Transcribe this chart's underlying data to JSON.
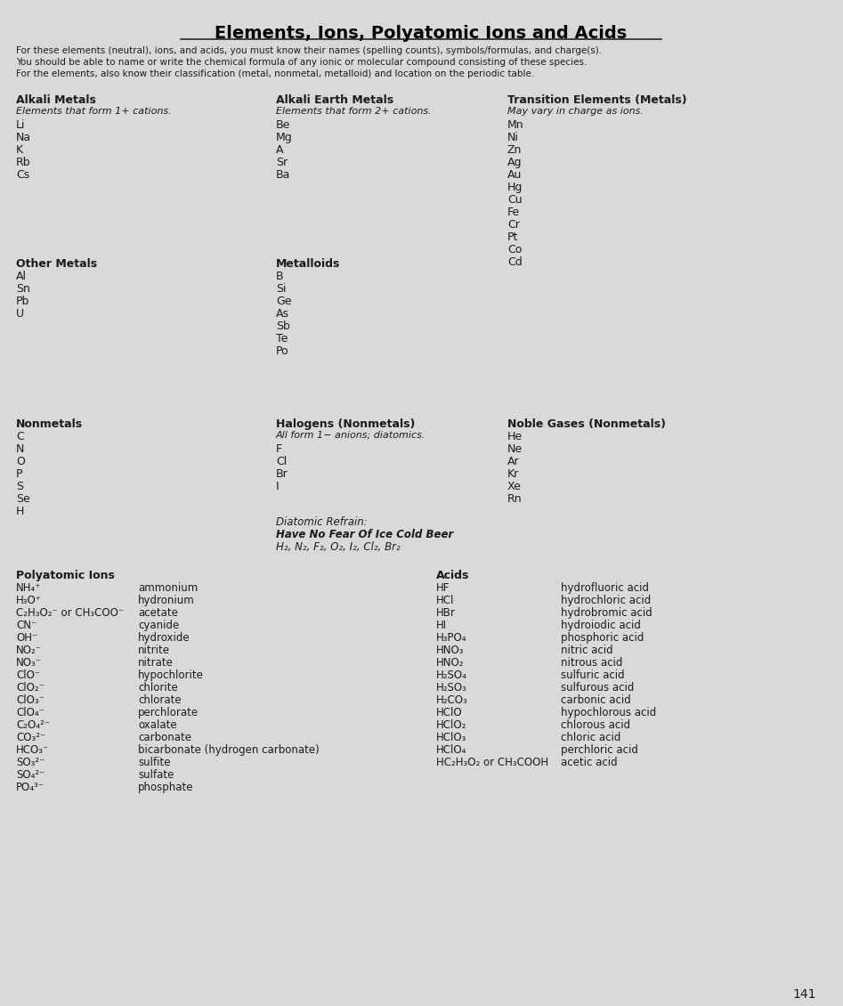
{
  "title": "Elements, Ions, Polyatomic Ions and Acids",
  "intro_lines": [
    "For these elements (neutral), ions, and acids, you must know their names (spelling counts), symbols/formulas, and charge(s).",
    "You should be able to name or write the chemical formula of any ionic or molecular compound consisting of these species.",
    "For the elements, also know their classification (metal, nonmetal, metalloid) and location on the periodic table."
  ],
  "section1_col1_header": "Alkali Metals",
  "section1_col1_subheader": "Elements that form 1+ cations.",
  "section1_col1_items": [
    "Li",
    "Na",
    "K",
    "Rb",
    "Cs"
  ],
  "section1_col2_header": "Alkali Earth Metals",
  "section1_col2_subheader": "Elements that form 2+ cations.",
  "section1_col2_items": [
    "Be",
    "Mg",
    "A",
    "Sr",
    "Ba"
  ],
  "section1_col3_header": "Transition Elements (Metals)",
  "section1_col3_subheader": "May vary in charge as ions.",
  "section1_col3_items": [
    "Mn",
    "Ni",
    "Zn",
    "Ag",
    "Au",
    "Hg",
    "Cu",
    "Fe",
    "Cr",
    "Pt",
    "Co",
    "Cd"
  ],
  "section2_col1_header": "Other Metals",
  "section2_col1_items": [
    "Al",
    "Sn",
    "Pb",
    "U"
  ],
  "section2_col2_header": "Metalloids",
  "section2_col2_items": [
    "B",
    "Si",
    "Ge",
    "As",
    "Sb",
    "Te",
    "Po"
  ],
  "section3_col1_header": "Nonmetals",
  "section3_col1_items": [
    "C",
    "N",
    "O",
    "P",
    "S",
    "Se",
    "H"
  ],
  "section3_col2_header": "Halogens (Nonmetals)",
  "section3_col2_subheader": "All form 1− anions; diatomics.",
  "section3_col2_items": [
    "F",
    "Cl",
    "Br",
    "I"
  ],
  "section3_col3_header": "Noble Gases (Nonmetals)",
  "section3_col3_items": [
    "He",
    "Ne",
    "Ar",
    "Kr",
    "Xe",
    "Rn"
  ],
  "diatomic_header": "Diatomic Refrain:",
  "diatomic_line1": "Have No Fear Of Ice Cold Beer",
  "diatomic_line2": "H₂, N₂, F₂, O₂, I₂, Cl₂, Br₂",
  "poly_header": "Polyatomic Ions",
  "poly_ions": [
    [
      "NH₄⁺",
      "ammonium"
    ],
    [
      "H₃O⁺",
      "hydronium"
    ],
    [
      "C₂H₃O₂⁻ or CH₃COO⁻",
      "acetate"
    ],
    [
      "CN⁻",
      "cyanide"
    ],
    [
      "OH⁻",
      "hydroxide"
    ],
    [
      "NO₂⁻",
      "nitrite"
    ],
    [
      "NO₃⁻",
      "nitrate"
    ],
    [
      "ClO⁻",
      "hypochlorite"
    ],
    [
      "ClO₂⁻",
      "chlorite"
    ],
    [
      "ClO₃⁻",
      "chlorate"
    ],
    [
      "ClO₄⁻",
      "perchlorate"
    ],
    [
      "C₂O₄²⁻",
      "oxalate"
    ],
    [
      "CO₃²⁻",
      "carbonate"
    ],
    [
      "HCO₃⁻",
      "bicarbonate (hydrogen carbonate)"
    ],
    [
      "SO₃²⁻",
      "sulfite"
    ],
    [
      "SO₄²⁻",
      "sulfate"
    ],
    [
      "PO₄³⁻",
      "phosphate"
    ]
  ],
  "acids_header": "Acids",
  "acids": [
    [
      "HF",
      "hydrofluoric acid"
    ],
    [
      "HCl",
      "hydrochloric acid"
    ],
    [
      "HBr",
      "hydrobromic acid"
    ],
    [
      "HI",
      "hydroiodic acid"
    ],
    [
      "H₃PO₄",
      "phosphoric acid"
    ],
    [
      "HNO₃",
      "nitric acid"
    ],
    [
      "HNO₂",
      "nitrous acid"
    ],
    [
      "H₂SO₄",
      "sulfuric acid"
    ],
    [
      "H₂SO₃",
      "sulfurous acid"
    ],
    [
      "H₂CO₃",
      "carbonic acid"
    ],
    [
      "HClO",
      "hypochlorous acid"
    ],
    [
      "HClO₂",
      "chlorous acid"
    ],
    [
      "HClO₃",
      "chloric acid"
    ],
    [
      "HClO₄",
      "perchloric acid"
    ],
    [
      "HC₂H₃O₂ or CH₃COOH",
      "acetic acid"
    ]
  ],
  "page_number": "141",
  "bg_color": "#d9d9d9",
  "text_color": "#1a1a1a",
  "header_color": "#000000"
}
